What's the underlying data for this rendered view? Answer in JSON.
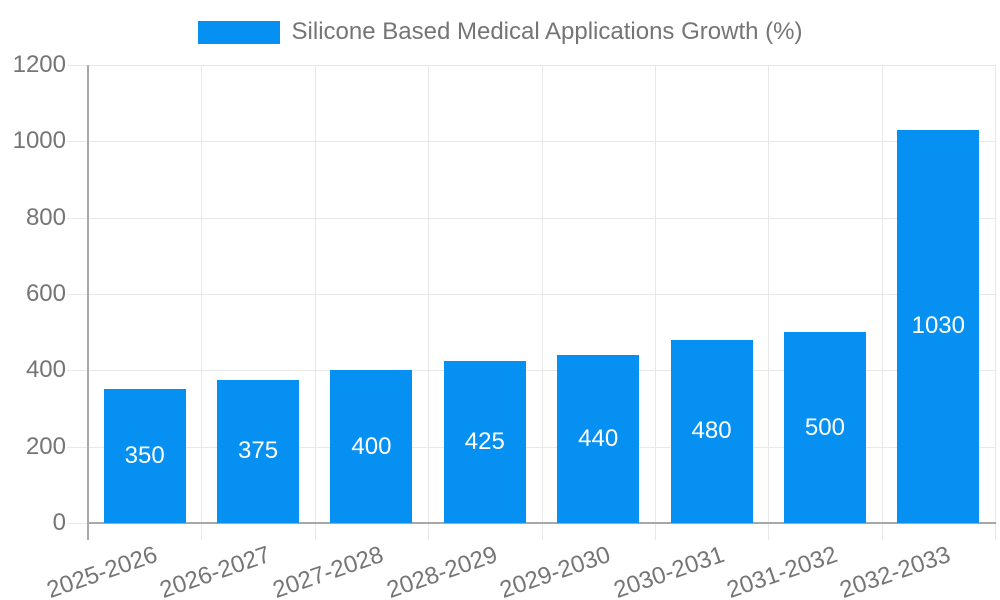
{
  "chart_data": {
    "type": "bar",
    "title": "Silicone Based Medical Applications Growth (%)",
    "categories": [
      "2025-2026",
      "2026-2027",
      "2027-2028",
      "2028-2029",
      "2029-2030",
      "2030-2031",
      "2031-2032",
      "2032-2033"
    ],
    "series": [
      {
        "name": "Silicone Based Medical Applications Growth (%)",
        "values": [
          350,
          375,
          400,
          425,
          440,
          480,
          500,
          1030
        ]
      }
    ],
    "value_labels": [
      "350",
      "375",
      "400",
      "425",
      "440",
      "480",
      "500",
      "1030"
    ],
    "value_label_position": "inside-center",
    "xlabel": "",
    "ylabel": "",
    "ylim": [
      0,
      1200
    ],
    "yticks": [
      0,
      200,
      400,
      600,
      800,
      1000,
      1200
    ],
    "ytick_labels": [
      "0",
      "200",
      "400",
      "600",
      "800",
      "1000",
      "1200"
    ],
    "grid": true,
    "legend_position": "top-center",
    "x_label_rotation_deg": -19
  },
  "legend": {
    "label": "Silicone Based Medical Applications Growth (%)"
  },
  "colors": {
    "bar": "#0590f2",
    "text": "#757575",
    "grid_line": "#e8e8e8",
    "axis_line": "#a8a8a8",
    "value_label": "#ffffff",
    "background": "#ffffff"
  }
}
